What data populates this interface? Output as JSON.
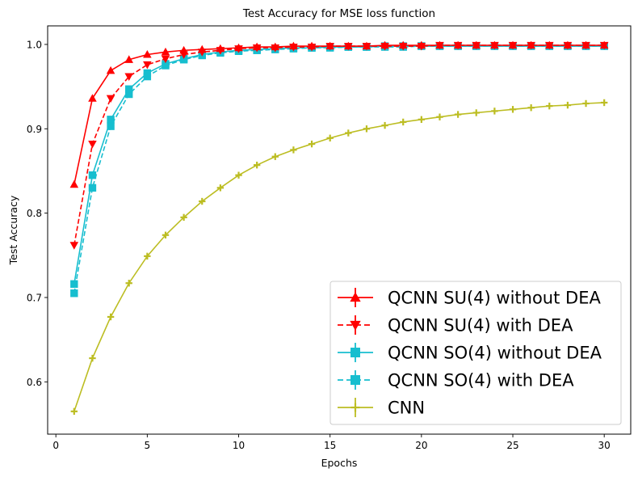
{
  "chart_data": {
    "type": "line",
    "title": "Test Accuracy for MSE loss function",
    "xlabel": "Epochs",
    "ylabel": "Test Accuracy",
    "xlim": [
      -0.45,
      31.45
    ],
    "ylim": [
      0.538,
      1.022
    ],
    "xticks": [
      0,
      5,
      10,
      15,
      20,
      25,
      30
    ],
    "yticks": [
      0.6,
      0.7,
      0.8,
      0.9,
      1.0
    ],
    "ytick_labels": [
      "0.6",
      "0.7",
      "0.8",
      "0.9",
      "1.0"
    ],
    "xtick_labels": [
      "0",
      "5",
      "10",
      "15",
      "20",
      "25",
      "30"
    ],
    "grid": false,
    "legend_position": "lower-right",
    "x": [
      1,
      2,
      3,
      4,
      5,
      6,
      7,
      8,
      9,
      10,
      11,
      12,
      13,
      14,
      15,
      16,
      17,
      18,
      19,
      20,
      21,
      22,
      23,
      24,
      25,
      26,
      27,
      28,
      29,
      30
    ],
    "series": [
      {
        "name": "QCNN SU(4) without DEA",
        "color": "#ff0000",
        "linestyle": "solid",
        "marker": "triangle-up",
        "values": [
          0.834,
          0.936,
          0.969,
          0.982,
          0.988,
          0.991,
          0.993,
          0.994,
          0.995,
          0.996,
          0.997,
          0.997,
          0.998,
          0.998,
          0.998,
          0.998,
          0.998,
          0.999,
          0.999,
          0.999,
          0.999,
          0.999,
          0.999,
          0.999,
          0.999,
          0.999,
          0.999,
          0.999,
          0.999,
          0.999
        ]
      },
      {
        "name": "QCNN SU(4) with DEA",
        "color": "#ff0000",
        "linestyle": "dashed",
        "marker": "triangle-down",
        "values": [
          0.762,
          0.882,
          0.936,
          0.962,
          0.976,
          0.983,
          0.988,
          0.991,
          0.993,
          0.995,
          0.996,
          0.996,
          0.997,
          0.997,
          0.998,
          0.998,
          0.998,
          0.998,
          0.998,
          0.998,
          0.999,
          0.999,
          0.999,
          0.999,
          0.999,
          0.999,
          0.999,
          0.999,
          0.999,
          0.999
        ]
      },
      {
        "name": "QCNN SO(4) without DEA",
        "color": "#17becf",
        "linestyle": "solid",
        "marker": "square",
        "values": [
          0.716,
          0.845,
          0.911,
          0.947,
          0.966,
          0.977,
          0.983,
          0.988,
          0.991,
          0.993,
          0.994,
          0.995,
          0.996,
          0.996,
          0.997,
          0.997,
          0.997,
          0.998,
          0.998,
          0.998,
          0.998,
          0.998,
          0.998,
          0.998,
          0.998,
          0.998,
          0.998,
          0.998,
          0.998,
          0.998
        ]
      },
      {
        "name": "QCNN SO(4) with DEA",
        "color": "#17becf",
        "linestyle": "dashed",
        "marker": "square",
        "values": [
          0.705,
          0.83,
          0.903,
          0.941,
          0.962,
          0.975,
          0.982,
          0.987,
          0.99,
          0.992,
          0.993,
          0.994,
          0.995,
          0.996,
          0.996,
          0.997,
          0.997,
          0.997,
          0.997,
          0.998,
          0.998,
          0.998,
          0.998,
          0.998,
          0.998,
          0.998,
          0.998,
          0.998,
          0.998,
          0.998
        ]
      },
      {
        "name": "CNN",
        "color": "#bcbd22",
        "linestyle": "solid",
        "marker": "plus",
        "values": [
          0.565,
          0.628,
          0.677,
          0.717,
          0.749,
          0.774,
          0.795,
          0.814,
          0.83,
          0.845,
          0.857,
          0.867,
          0.875,
          0.882,
          0.889,
          0.895,
          0.9,
          0.904,
          0.908,
          0.911,
          0.914,
          0.917,
          0.919,
          0.921,
          0.923,
          0.925,
          0.927,
          0.928,
          0.93,
          0.931
        ]
      }
    ]
  }
}
